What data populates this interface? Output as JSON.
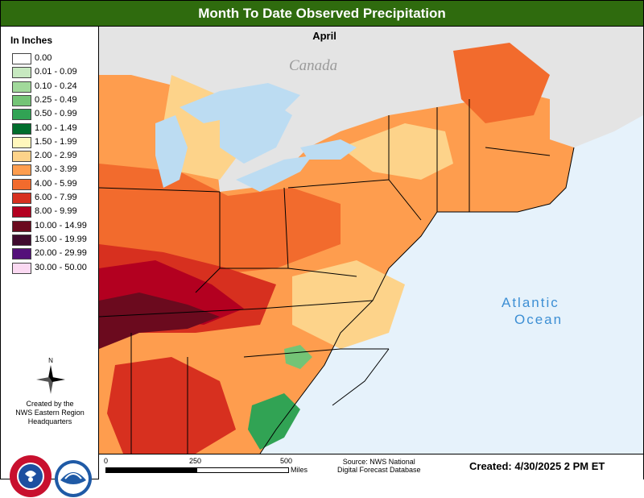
{
  "title": "Month To Date Observed Precipitation",
  "month": "April",
  "legend": {
    "title": "In Inches",
    "items": [
      {
        "label": "0.00",
        "color": "#ffffff"
      },
      {
        "label": "0.01 - 0.09",
        "color": "#c7e9c0"
      },
      {
        "label": "0.10 - 0.24",
        "color": "#a1d99b"
      },
      {
        "label": "0.25 - 0.49",
        "color": "#74c476"
      },
      {
        "label": "0.50 - 0.99",
        "color": "#31a354"
      },
      {
        "label": "1.00 - 1.49",
        "color": "#006d2c"
      },
      {
        "label": "1.50 - 1.99",
        "color": "#fff7bc"
      },
      {
        "label": "2.00 - 2.99",
        "color": "#fdd38a"
      },
      {
        "label": "3.00 - 3.99",
        "color": "#fe9d4e"
      },
      {
        "label": "4.00 - 5.99",
        "color": "#f26b2d"
      },
      {
        "label": "6.00 - 7.99",
        "color": "#d7301f"
      },
      {
        "label": "8.00 - 9.99",
        "color": "#b30020"
      },
      {
        "label": "10.00 - 14.99",
        "color": "#6b0a1e"
      },
      {
        "label": "15.00 - 19.99",
        "color": "#3f0a2e"
      },
      {
        "label": "20.00 - 29.99",
        "color": "#54107a"
      },
      {
        "label": "30.00 - 50.00",
        "color": "#fbd9f2"
      }
    ]
  },
  "map_labels": {
    "canada": "Canada",
    "ocean_line1": "Atlantic",
    "ocean_line2": "Ocean",
    "north": "N"
  },
  "credits": {
    "line1": "Created by the",
    "line2": "NWS Eastern Region",
    "line3": "Headquarters"
  },
  "scale": {
    "ticks": [
      "0",
      "250",
      "500"
    ],
    "units": "Miles"
  },
  "source": {
    "line1": "Source: NWS National",
    "line2": "Digital Forecast Database"
  },
  "created": "Created: 4/30/2025 2 PM ET",
  "colors": {
    "title_bar": "#2f6b0e",
    "ocean": "#e6f2fb",
    "canada": "#e4e4e4",
    "lakes": "#bcdcf2",
    "ocean_label": "#3d8fd4"
  }
}
